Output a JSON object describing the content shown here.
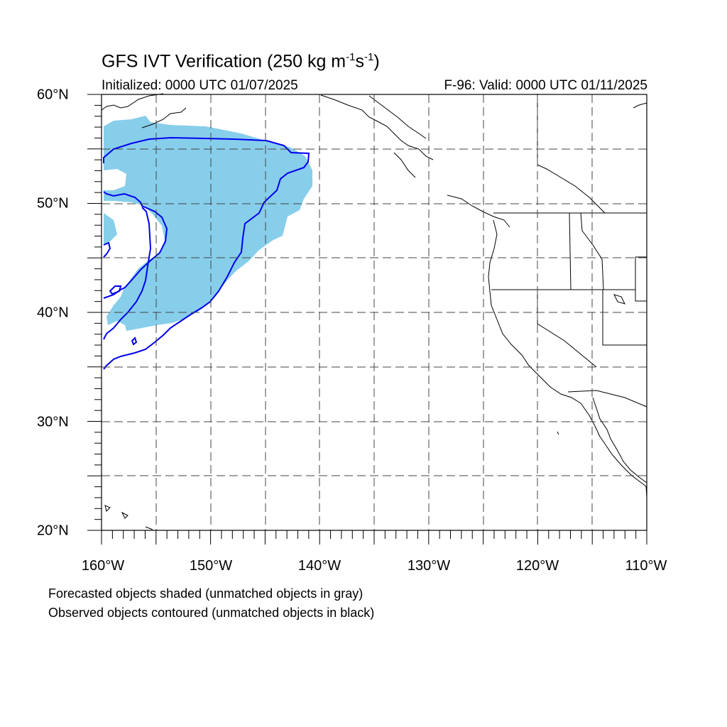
{
  "title": "GFS IVT Verification (250 kg m",
  "title_exp1": "-1",
  "title_mid": "s",
  "title_exp2": "-1",
  "title_end": ")",
  "initialized": "Initialized: 0000 UTC 01/07/2025",
  "valid": "F-96: Valid: 0000 UTC 01/11/2025",
  "lat_labels": [
    "60°N",
    "50°N",
    "40°N",
    "30°N",
    "20°N"
  ],
  "lon_labels": [
    "160°W",
    "150°W",
    "140°W",
    "130°W",
    "120°W",
    "110°W"
  ],
  "notes": [
    "Forecasted objects shaded (unmatched objects in gray)",
    "Observed objects contoured (unmatched objects in black)"
  ],
  "map_extent": {
    "lon_min": -160,
    "lon_max": -110,
    "lat_min": 20,
    "lat_max": 60
  },
  "colors": {
    "forecast_fill": "#87ceeb",
    "observed_contour": "#0000ee",
    "coast": "#000000",
    "grid": "#444444"
  }
}
